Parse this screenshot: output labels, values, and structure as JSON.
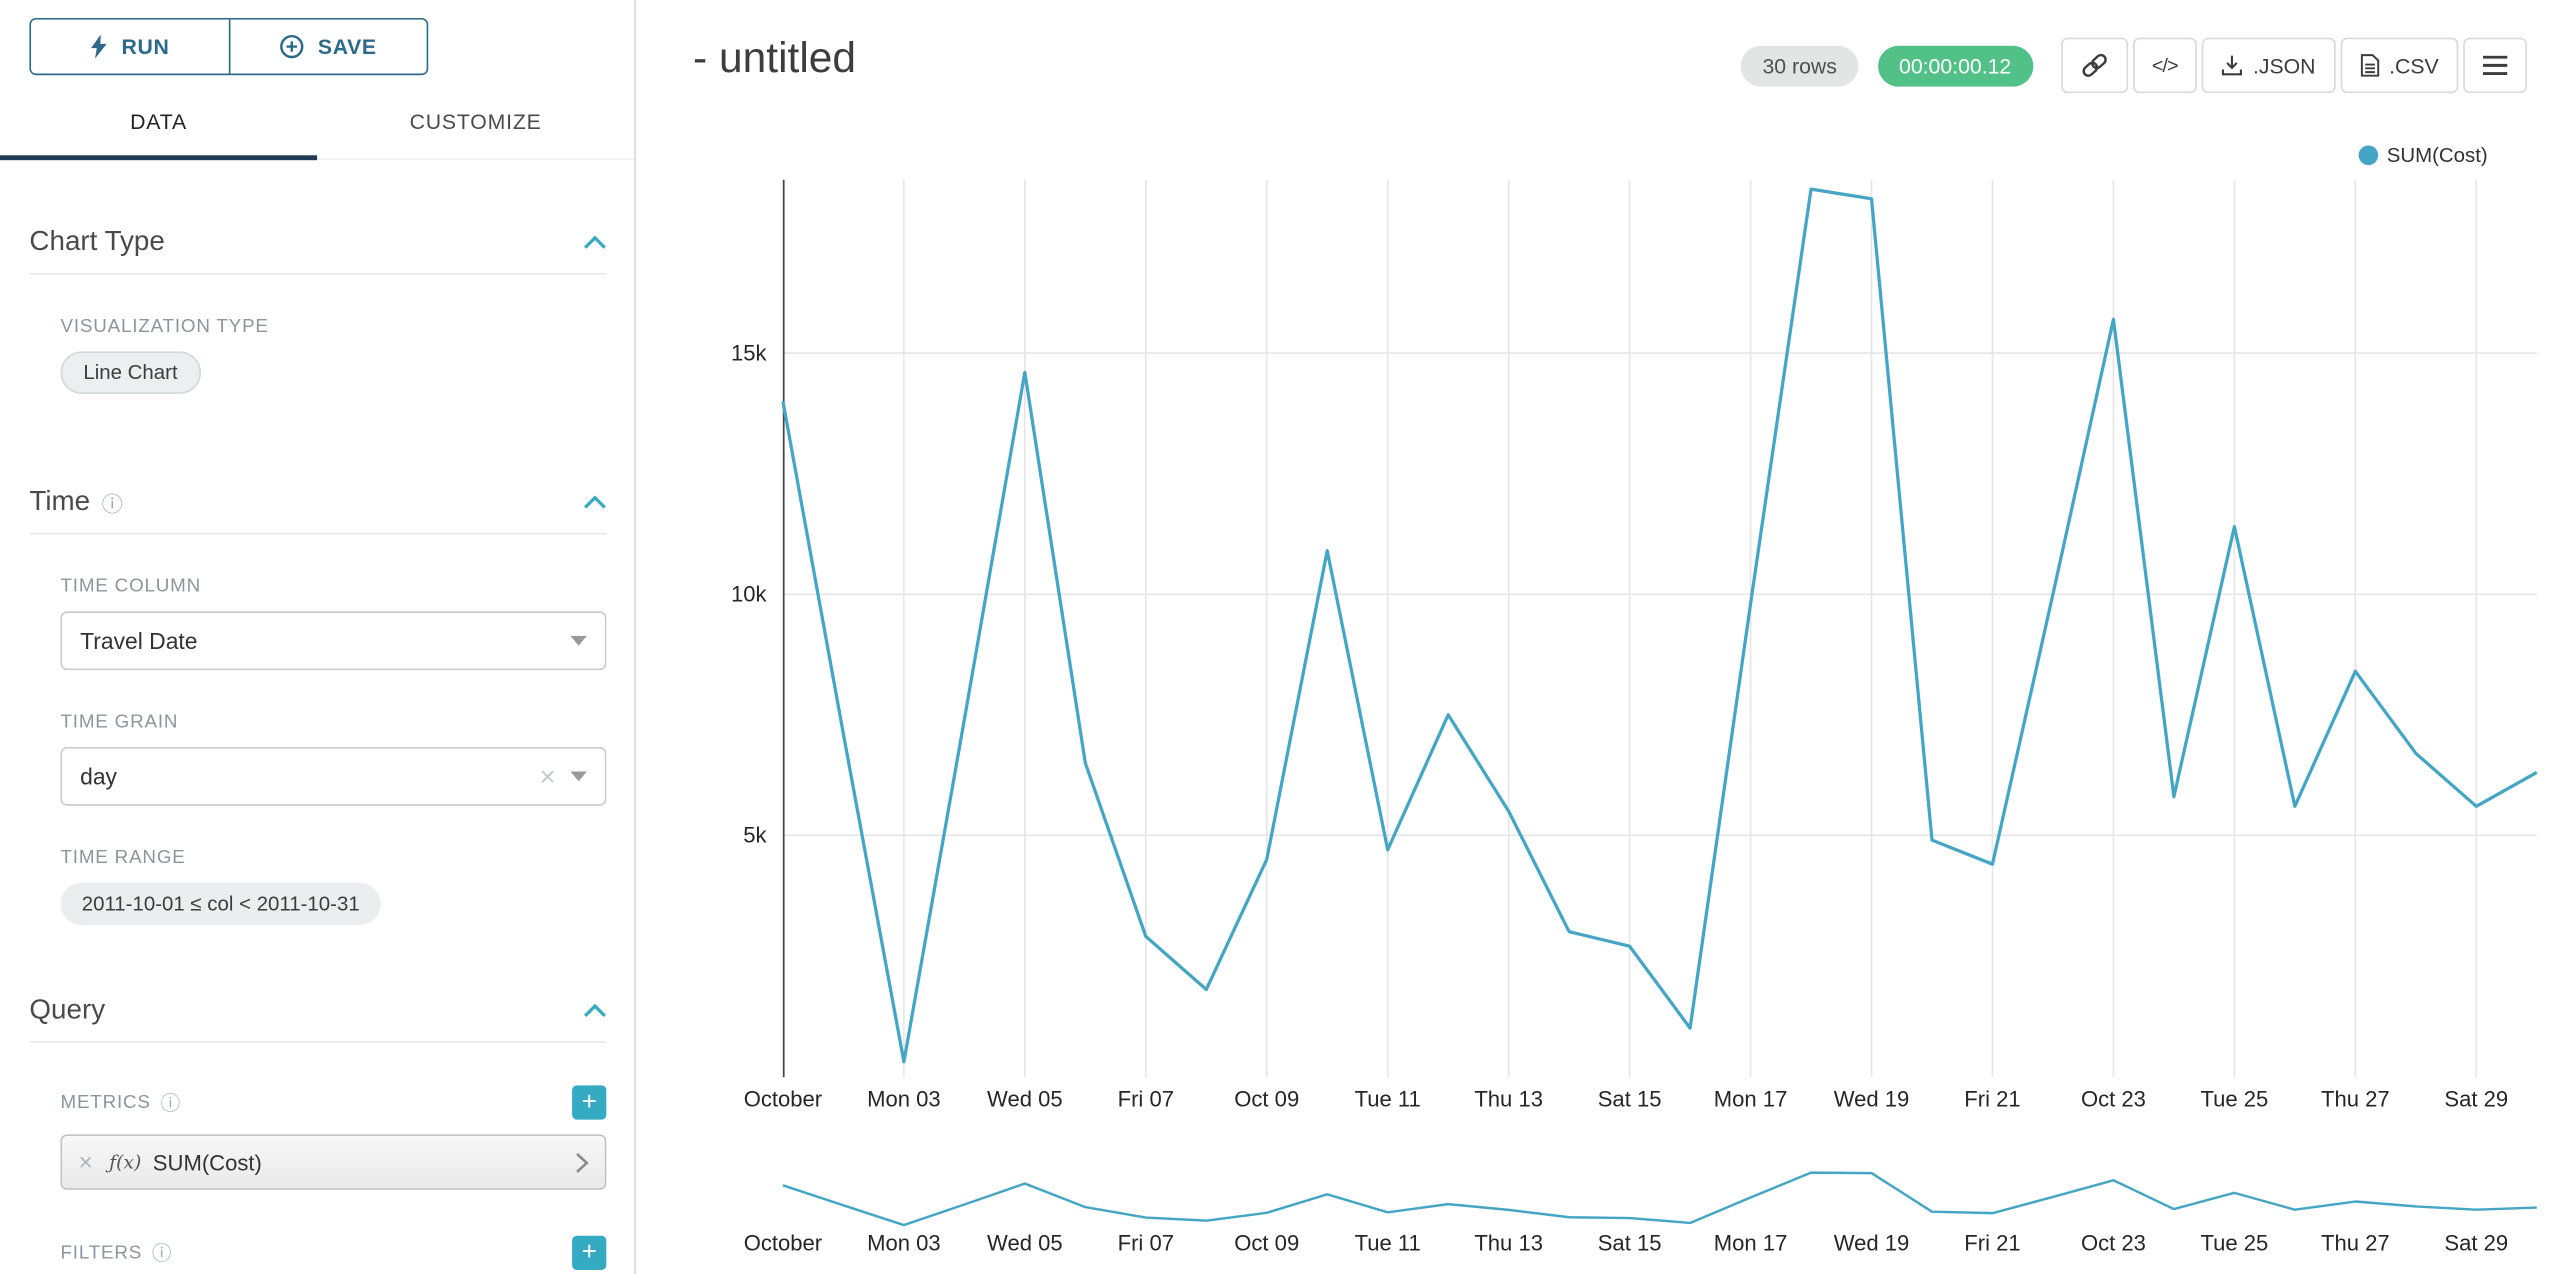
{
  "colors": {
    "line": "#45a5c5",
    "success": "#52c188",
    "accent": "#1f3b54",
    "button_blue": "#2d6a8a",
    "plus_teal": "#35aac3",
    "grid": "#e6e6e6",
    "label_gray": "#8b969c"
  },
  "icons": {
    "plus": "+",
    "clear": "×",
    "info": "ⓘ",
    "fx": "ƒ(x)"
  },
  "sidebar": {
    "run_label": "RUN",
    "save_label": "SAVE",
    "tabs": [
      "DATA",
      "CUSTOMIZE"
    ],
    "chart_type": {
      "title": "Chart Type",
      "viz_type_label": "VISUALIZATION TYPE",
      "viz_type_value": "Line Chart"
    },
    "time": {
      "title": "Time",
      "time_column_label": "TIME COLUMN",
      "time_column_value": "Travel Date",
      "time_grain_label": "TIME GRAIN",
      "time_grain_value": "day",
      "time_range_label": "TIME RANGE",
      "time_range_value": "2011-10-01 ≤ col < 2011-10-31"
    },
    "query": {
      "title": "Query",
      "metrics_label": "METRICS",
      "metric_value": "SUM(Cost)",
      "filters_label": "FILTERS"
    }
  },
  "header": {
    "title": "- untitled",
    "rows_badge": "30 rows",
    "timer_badge": "00:00:00.12",
    "code_label": "</>",
    "json_label": ".JSON",
    "csv_label": ".CSV"
  },
  "legend": {
    "label": "SUM(Cost)"
  },
  "chart_data": {
    "type": "line",
    "title": "- untitled",
    "x_axis": "Travel Date (day)",
    "x_range": [
      "2011-10-01",
      "2011-10-30"
    ],
    "series": [
      {
        "name": "SUM(Cost)",
        "values": [
          14000,
          7100,
          300,
          7400,
          14600,
          6500,
          2900,
          1800,
          4500,
          10900,
          4700,
          7500,
          5500,
          3000,
          2700,
          1000,
          9800,
          18400,
          18200,
          4900,
          4400,
          10000,
          15700,
          5800,
          11400,
          5600,
          8400,
          6700,
          5600,
          6300
        ]
      }
    ],
    "x_tick_labels": [
      "October",
      "Mon 03",
      "Wed 05",
      "Fri 07",
      "Oct 09",
      "Tue 11",
      "Thu 13",
      "Sat 15",
      "Mon 17",
      "Wed 19",
      "Fri 21",
      "Oct 23",
      "Tue 25",
      "Thu 27",
      "Sat 29"
    ],
    "x_tick_indices": [
      0,
      2,
      4,
      6,
      8,
      10,
      12,
      14,
      16,
      18,
      20,
      22,
      24,
      26,
      28
    ],
    "y_ticks": [
      {
        "label": "5k",
        "value": 5000
      },
      {
        "label": "10k",
        "value": 10000
      },
      {
        "label": "15k",
        "value": 15000
      }
    ],
    "ylim": [
      0,
      18600
    ],
    "grid": true,
    "legend_position": "top-right",
    "has_focus_chart": true
  }
}
